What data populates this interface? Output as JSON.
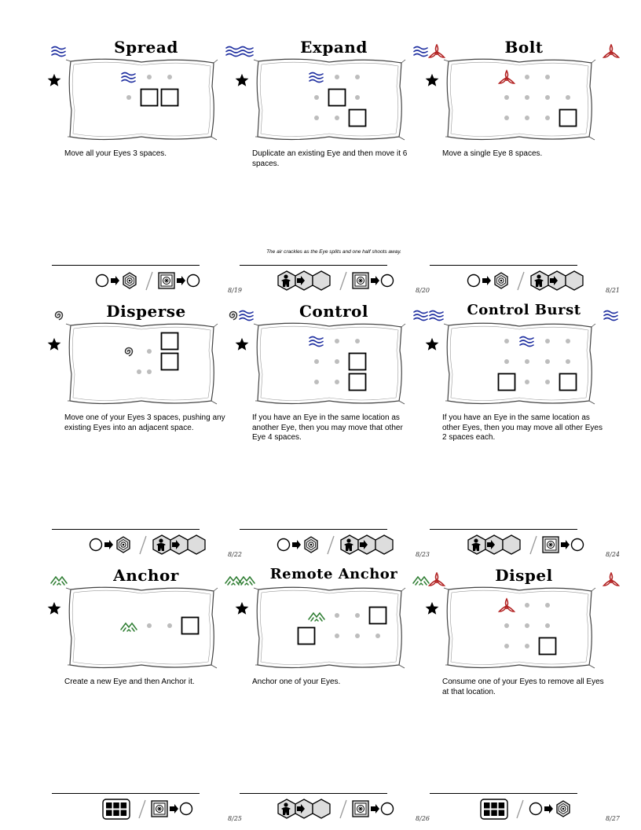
{
  "cards": [
    {
      "title": "Spread",
      "element": "water",
      "description": "Move all your Eyes 3 spaces.",
      "flavor": "",
      "number": "8/19",
      "costs": "circle-eye|eye-circle",
      "grid": [
        {
          "t": "ic",
          "c": 1,
          "r": 0,
          "el": "water"
        },
        {
          "t": "d",
          "c": 2,
          "r": 0
        },
        {
          "t": "d",
          "c": 3,
          "r": 0
        },
        {
          "t": "d",
          "c": 1,
          "r": 1
        },
        {
          "t": "s",
          "c": 2,
          "r": 1
        },
        {
          "t": "s",
          "c": 3,
          "r": 1
        }
      ]
    },
    {
      "title": "Expand",
      "element": "water",
      "description": "Duplicate an existing Eye and then move it 6 spaces.",
      "flavor": "The air crackles as the Eye splits and one half shoots away.",
      "number": "8/20",
      "costs": "hex|eye-circle",
      "grid": [
        {
          "t": "ic",
          "c": 1,
          "r": 0,
          "el": "water"
        },
        {
          "t": "d",
          "c": 2,
          "r": 0
        },
        {
          "t": "d",
          "c": 3,
          "r": 0
        },
        {
          "t": "d",
          "c": 1,
          "r": 1
        },
        {
          "t": "s",
          "c": 2,
          "r": 1
        },
        {
          "t": "d",
          "c": 3,
          "r": 1
        },
        {
          "t": "d",
          "c": 1,
          "r": 2
        },
        {
          "t": "d",
          "c": 2,
          "r": 2
        },
        {
          "t": "s",
          "c": 3,
          "r": 2
        }
      ]
    },
    {
      "title": "Bolt",
      "element": "fire",
      "description": "Move a single Eye 8 spaces.",
      "flavor": "",
      "number": "8/21",
      "costs": "circle-eye|hex",
      "grid": [
        {
          "t": "ic",
          "c": 1,
          "r": 0,
          "el": "fire"
        },
        {
          "t": "d",
          "c": 2,
          "r": 0
        },
        {
          "t": "d",
          "c": 3,
          "r": 0
        },
        {
          "t": "d",
          "c": 1,
          "r": 1
        },
        {
          "t": "d",
          "c": 2,
          "r": 1
        },
        {
          "t": "d",
          "c": 3,
          "r": 1
        },
        {
          "t": "d",
          "c": 4,
          "r": 1
        },
        {
          "t": "d",
          "c": 1,
          "r": 2
        },
        {
          "t": "d",
          "c": 2,
          "r": 2
        },
        {
          "t": "d",
          "c": 3,
          "r": 2
        },
        {
          "t": "s",
          "c": 4,
          "r": 2
        }
      ]
    },
    {
      "title": "Disperse",
      "element": "air",
      "description": "Move one of your Eyes 3 spaces, pushing any existing Eyes into an adjacent space.",
      "flavor": "",
      "number": "8/22",
      "costs": "circle-eye|hex",
      "grid": [
        {
          "t": "ic",
          "c": 1,
          "r": 0.5,
          "el": "air"
        },
        {
          "t": "d",
          "c": 2,
          "r": 0.5
        },
        {
          "t": "s",
          "c": 3,
          "r": 0
        },
        {
          "t": "d",
          "c": 1.5,
          "r": 1.5
        },
        {
          "t": "d",
          "c": 2,
          "r": 1.5
        },
        {
          "t": "s",
          "c": 3,
          "r": 1
        }
      ]
    },
    {
      "title": "Control",
      "element": "water",
      "description": "If you have an Eye in the same location as another Eye, then you may move that other Eye 4 spaces.",
      "flavor": "",
      "number": "8/23",
      "costs": "circle-eye|hex",
      "grid": [
        {
          "t": "ic",
          "c": 1,
          "r": 0,
          "el": "water"
        },
        {
          "t": "d",
          "c": 2,
          "r": 0
        },
        {
          "t": "d",
          "c": 3,
          "r": 0
        },
        {
          "t": "d",
          "c": 1,
          "r": 1
        },
        {
          "t": "d",
          "c": 2,
          "r": 1
        },
        {
          "t": "s",
          "c": 3,
          "r": 1
        },
        {
          "t": "d",
          "c": 1,
          "r": 2
        },
        {
          "t": "d",
          "c": 2,
          "r": 2
        },
        {
          "t": "s",
          "c": 3,
          "r": 2
        }
      ]
    },
    {
      "title": "Control Burst",
      "element": "water",
      "description": "If you have an Eye in the same location as other Eyes, then you may move all other Eyes 2 spaces each.",
      "flavor": "",
      "number": "8/24",
      "costs": "hex|eye-circle",
      "grid": [
        {
          "t": "d",
          "c": 1,
          "r": 0
        },
        {
          "t": "ic",
          "c": 2,
          "r": 0,
          "el": "water"
        },
        {
          "t": "d",
          "c": 3,
          "r": 0
        },
        {
          "t": "d",
          "c": 4,
          "r": 0
        },
        {
          "t": "d",
          "c": 1,
          "r": 1
        },
        {
          "t": "d",
          "c": 2,
          "r": 1
        },
        {
          "t": "d",
          "c": 3,
          "r": 1
        },
        {
          "t": "d",
          "c": 4,
          "r": 1
        },
        {
          "t": "s",
          "c": 1,
          "r": 2
        },
        {
          "t": "d",
          "c": 2,
          "r": 2
        },
        {
          "t": "d",
          "c": 3,
          "r": 2
        },
        {
          "t": "s",
          "c": 4,
          "r": 2
        }
      ]
    },
    {
      "title": "Anchor",
      "element": "earth",
      "description": "Create a new Eye and then Anchor it.",
      "flavor": "",
      "number": "8/25",
      "costs": "grid|eye-circle",
      "grid": [
        {
          "t": "ic",
          "c": 1,
          "r": 1,
          "el": "earth"
        },
        {
          "t": "d",
          "c": 2,
          "r": 1
        },
        {
          "t": "d",
          "c": 3,
          "r": 1
        },
        {
          "t": "s",
          "c": 4,
          "r": 1
        }
      ]
    },
    {
      "title": "Remote Anchor",
      "element": "earth",
      "description": "Anchor one of your Eyes.",
      "flavor": "",
      "number": "8/26",
      "costs": "hex|eye-circle",
      "grid": [
        {
          "t": "ic",
          "c": 1,
          "r": 0.5,
          "el": "earth"
        },
        {
          "t": "d",
          "c": 2,
          "r": 0.5
        },
        {
          "t": "d",
          "c": 3,
          "r": 0.5
        },
        {
          "t": "s",
          "c": 4,
          "r": 0.5
        },
        {
          "t": "s",
          "c": 0.5,
          "r": 1.5
        },
        {
          "t": "d",
          "c": 2,
          "r": 1.5
        },
        {
          "t": "d",
          "c": 3,
          "r": 1.5
        },
        {
          "t": "d",
          "c": 4,
          "r": 1.5
        }
      ]
    },
    {
      "title": "Dispel",
      "element": "fire",
      "description": "Consume one of your Eyes to remove all Eyes at that location.",
      "flavor": "",
      "number": "8/27",
      "costs": "grid|circle-eye",
      "grid": [
        {
          "t": "ic",
          "c": 1,
          "r": 0,
          "el": "fire"
        },
        {
          "t": "d",
          "c": 2,
          "r": 0
        },
        {
          "t": "d",
          "c": 3,
          "r": 0
        },
        {
          "t": "d",
          "c": 1,
          "r": 1
        },
        {
          "t": "d",
          "c": 2,
          "r": 1
        },
        {
          "t": "d",
          "c": 3,
          "r": 1
        },
        {
          "t": "d",
          "c": 1,
          "r": 2
        },
        {
          "t": "d",
          "c": 2,
          "r": 2
        },
        {
          "t": "s",
          "c": 3,
          "r": 2
        }
      ]
    }
  ]
}
